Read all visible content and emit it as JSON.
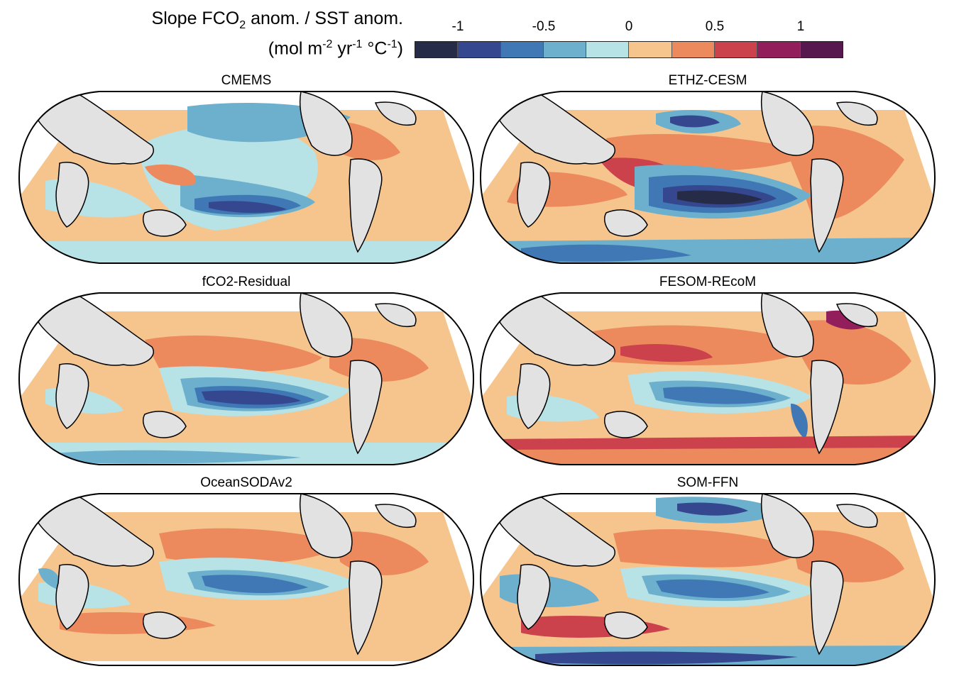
{
  "title": {
    "line1_pre": "Slope FCO",
    "line1_sub": "2",
    "line1_post": " anom. / SST anom.",
    "line2_a": "(mol m",
    "line2_sup1": "-2",
    "line2_b": " yr",
    "line2_sup2": "-1",
    "line2_c": " °C",
    "line2_sup3": "-1",
    "line2_d": ")"
  },
  "colorbar": {
    "ticks": [
      "-1",
      "-0.5",
      "0",
      "0.5",
      "1"
    ],
    "colors": [
      "#262b48",
      "#35478f",
      "#3f78b5",
      "#6cb0ce",
      "#b7e2e6",
      "#f6c58d",
      "#ec8a5d",
      "#cc424c",
      "#921f5c",
      "#57184f"
    ]
  },
  "colors": {
    "land": "#e2e2e2",
    "coast": "#000000",
    "background": "#ffffff"
  },
  "panels": [
    {
      "id": "cmems",
      "title": "CMEMS"
    },
    {
      "id": "ethz",
      "title": "ETHZ-CESM"
    },
    {
      "id": "fco2res",
      "title": "fCO2-Residual"
    },
    {
      "id": "fesom",
      "title": "FESOM-REcoM"
    },
    {
      "id": "oceansoda",
      "title": "OceanSODAv2"
    },
    {
      "id": "somffn",
      "title": "SOM-FFN"
    }
  ]
}
